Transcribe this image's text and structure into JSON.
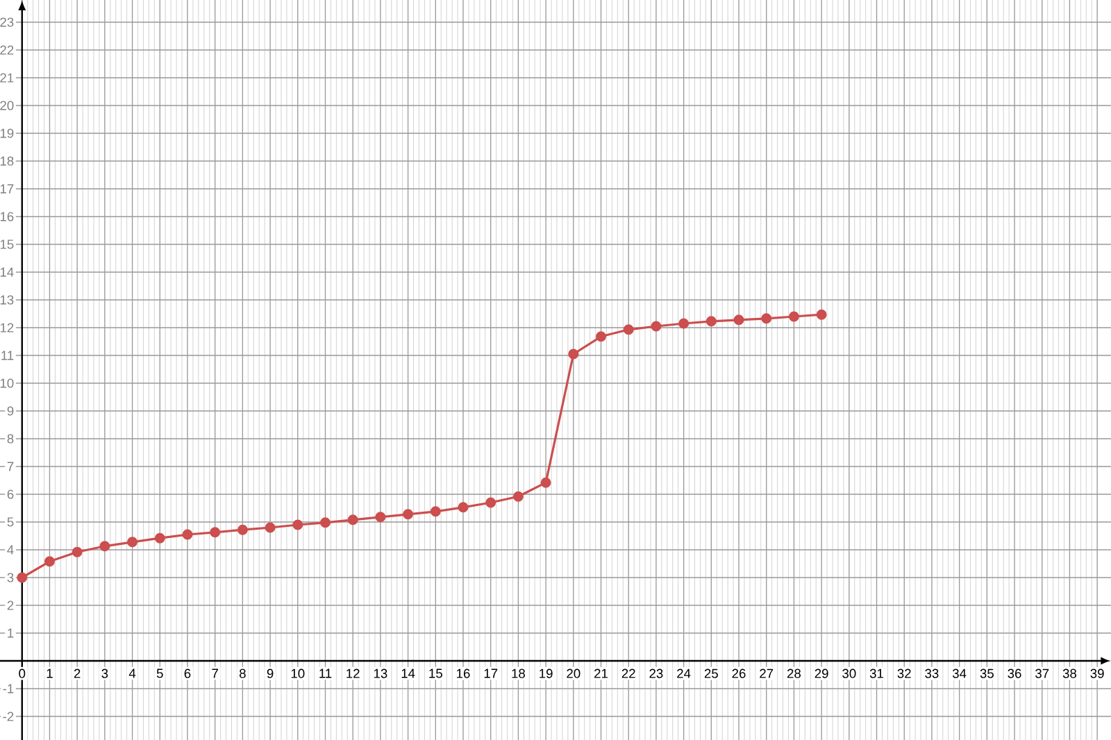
{
  "chart_data": {
    "type": "line",
    "x": [
      0,
      1,
      2,
      3,
      4,
      5,
      6,
      7,
      8,
      9,
      10,
      11,
      12,
      13,
      14,
      15,
      16,
      17,
      18,
      19,
      20,
      21,
      22,
      23,
      24,
      25,
      26,
      27,
      28,
      29
    ],
    "values": [
      3.0,
      3.58,
      3.92,
      4.13,
      4.28,
      4.42,
      4.55,
      4.63,
      4.72,
      4.8,
      4.9,
      4.98,
      5.08,
      5.18,
      5.28,
      5.38,
      5.53,
      5.7,
      5.92,
      6.42,
      11.05,
      11.68,
      11.93,
      12.05,
      12.15,
      12.23,
      12.28,
      12.33,
      12.4,
      12.47
    ],
    "color": "#cc4e4e",
    "marker": "circle",
    "line_style": "solid",
    "grid": true,
    "xlim": [
      -0.8,
      39.5
    ],
    "ylim": [
      -2.85,
      23.8
    ],
    "xticks": [
      0,
      1,
      2,
      3,
      4,
      5,
      6,
      7,
      8,
      9,
      10,
      11,
      12,
      13,
      14,
      15,
      16,
      17,
      18,
      19,
      20,
      21,
      22,
      23,
      24,
      25,
      26,
      27,
      28,
      29,
      30,
      31,
      32,
      33,
      34,
      35,
      36,
      37,
      38,
      39
    ],
    "yticks": [
      -2,
      -1,
      1,
      2,
      3,
      4,
      5,
      6,
      7,
      8,
      9,
      10,
      11,
      12,
      13,
      14,
      15,
      16,
      17,
      18,
      19,
      20,
      21,
      22,
      23
    ]
  }
}
